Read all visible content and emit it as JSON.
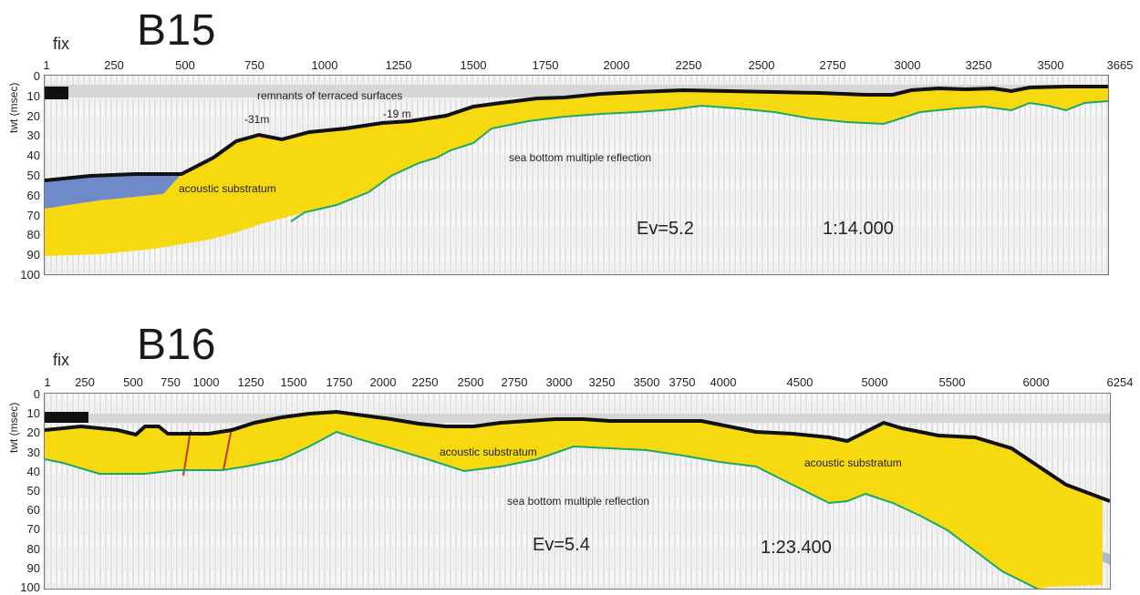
{
  "colors": {
    "substratum": "#f7d90f",
    "substratum_edge": "#c9a800",
    "blue_sediment": "#6f8ac8",
    "grey_sediment": "#a9bfcf",
    "multiple_line": "#1aa86a",
    "fault_line": "#c0392b",
    "seafloor": "#111111",
    "noise": "#d8d8d8"
  },
  "b15": {
    "title": "B15",
    "fix_label": "fix",
    "axis_label": "twt (msec)",
    "fix_ticks": [
      "1",
      "250",
      "500",
      "750",
      "1000",
      "1250",
      "1500",
      "1750",
      "2000",
      "2250",
      "2500",
      "2750",
      "3000",
      "3250",
      "3500",
      "3665"
    ],
    "depth_ticks": [
      "0",
      "10",
      "20",
      "30",
      "40",
      "50",
      "60",
      "70",
      "80",
      "90",
      "100"
    ],
    "annotations": {
      "remnants": "remnants of terraced surfaces",
      "depth_a": "-31m",
      "depth_b": "-19 m",
      "multiple": "sea bottom multiple reflection",
      "substratum": "acoustic substratum"
    },
    "ev": "Ev=5.2",
    "scale": "1:14.000"
  },
  "b16": {
    "title": "B16",
    "fix_label": "fix",
    "axis_label": "twt (msec)",
    "fix_ticks": [
      "1",
      "250",
      "500",
      "750",
      "1000",
      "1250",
      "1500",
      "1750",
      "2000",
      "2250",
      "2500",
      "2750",
      "3000",
      "3250",
      "3500",
      "3750",
      "4000",
      "4500",
      "5000",
      "5500",
      "6000",
      "6254"
    ],
    "depth_ticks": [
      "0",
      "10",
      "20",
      "30",
      "40",
      "50",
      "60",
      "70",
      "80",
      "90",
      "100"
    ],
    "annotations": {
      "substratum_a": "acoustic substratum",
      "substratum_b": "acoustic substratum",
      "multiple": "sea bottom multiple reflection"
    },
    "ev": "Ev=5.4",
    "scale": "1:23.400"
  }
}
